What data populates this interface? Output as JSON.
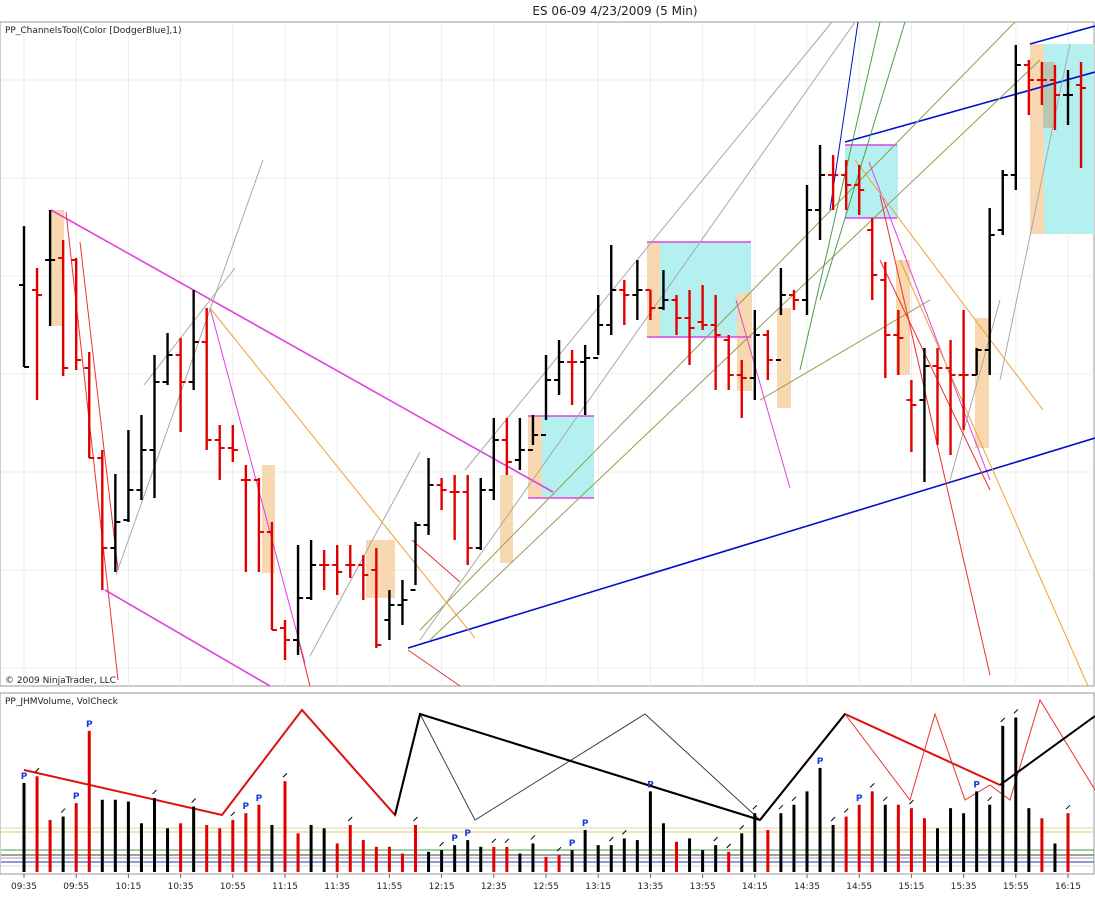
{
  "window": {
    "title": "ES 06-09  4/23/2009 (5 Min)"
  },
  "colors": {
    "up_bar": "#000000",
    "down_bar": "#e00000",
    "magenta": "#e040e0",
    "blue": "#0010c8",
    "gray": "#a8a8a8",
    "olive": "#9a9a50",
    "orange": "#f0a030",
    "green": "#4aa04a",
    "red_line": "#ee3030",
    "cyan_box": "#b4f0f0",
    "peach_box": "#f8d8b0",
    "p_marker": "#1a3ad8",
    "grid": "#ececec"
  },
  "price_panel": {
    "indicator_label": "PP_ChannelsTool(Color [DodgerBlue],1)",
    "copyright": "© 2009 NinjaTrader, LLC"
  },
  "volume_panel": {
    "indicator_label": "PP_JHMVolume, VolCheck",
    "p_marker_text": "P"
  },
  "chart_data": [
    {
      "type": "bar",
      "title": "ES 06-09  4/23/2009 (5 Min)",
      "series_name": "PP_ChannelsTool(Color [DodgerBlue],1)",
      "x_tick_labels": [
        "09:35",
        "09:55",
        "10:15",
        "10:35",
        "10:55",
        "11:15",
        "11:35",
        "11:55",
        "12:15",
        "12:35",
        "12:55",
        "13:15",
        "13:35",
        "13:55",
        "14:15",
        "14:35",
        "14:55",
        "15:15",
        "15:35",
        "15:55",
        "16:15"
      ],
      "y_axis_labels_visible": false,
      "grid": true,
      "ohlc_relative": [
        {
          "h": 226,
          "l": 367,
          "o": 285,
          "c": 367,
          "dir": "up"
        },
        {
          "h": 268,
          "l": 400,
          "o": 290,
          "c": 295,
          "dir": "down"
        },
        {
          "h": 210,
          "l": 326,
          "o": 260,
          "c": 260,
          "dir": "up"
        },
        {
          "h": 240,
          "l": 376,
          "o": 258,
          "c": 368,
          "dir": "down"
        },
        {
          "h": 258,
          "l": 370,
          "o": 260,
          "c": 360,
          "dir": "down"
        },
        {
          "h": 352,
          "l": 458,
          "o": 368,
          "c": 458,
          "dir": "down"
        },
        {
          "h": 450,
          "l": 590,
          "o": 458,
          "c": 548,
          "dir": "down"
        },
        {
          "h": 474,
          "l": 572,
          "o": 548,
          "c": 522,
          "dir": "up"
        },
        {
          "h": 430,
          "l": 522,
          "o": 520,
          "c": 490,
          "dir": "up"
        },
        {
          "h": 415,
          "l": 500,
          "o": 490,
          "c": 450,
          "dir": "up"
        },
        {
          "h": 355,
          "l": 498,
          "o": 450,
          "c": 382,
          "dir": "up"
        },
        {
          "h": 333,
          "l": 385,
          "o": 382,
          "c": 355,
          "dir": "up"
        },
        {
          "h": 338,
          "l": 432,
          "o": 355,
          "c": 382,
          "dir": "down"
        },
        {
          "h": 290,
          "l": 390,
          "o": 382,
          "c": 342,
          "dir": "up"
        },
        {
          "h": 308,
          "l": 450,
          "o": 342,
          "c": 440,
          "dir": "down"
        },
        {
          "h": 425,
          "l": 480,
          "o": 440,
          "c": 448,
          "dir": "down"
        },
        {
          "h": 425,
          "l": 462,
          "o": 448,
          "c": 450,
          "dir": "down"
        },
        {
          "h": 465,
          "l": 572,
          "o": 480,
          "c": 480,
          "dir": "down"
        },
        {
          "h": 478,
          "l": 572,
          "o": 480,
          "c": 532,
          "dir": "down"
        },
        {
          "h": 522,
          "l": 630,
          "o": 532,
          "c": 630,
          "dir": "down"
        },
        {
          "h": 620,
          "l": 660,
          "o": 628,
          "c": 640,
          "dir": "down"
        },
        {
          "h": 545,
          "l": 655,
          "o": 640,
          "c": 598,
          "dir": "up"
        },
        {
          "h": 540,
          "l": 600,
          "o": 598,
          "c": 565,
          "dir": "up"
        },
        {
          "h": 550,
          "l": 590,
          "o": 565,
          "c": 565,
          "dir": "down"
        },
        {
          "h": 545,
          "l": 595,
          "o": 565,
          "c": 572,
          "dir": "down"
        },
        {
          "h": 545,
          "l": 578,
          "o": 565,
          "c": 565,
          "dir": "down"
        },
        {
          "h": 555,
          "l": 600,
          "o": 565,
          "c": 575,
          "dir": "down"
        },
        {
          "h": 548,
          "l": 648,
          "o": 570,
          "c": 645,
          "dir": "down"
        },
        {
          "h": 590,
          "l": 640,
          "o": 620,
          "c": 605,
          "dir": "up"
        },
        {
          "h": 580,
          "l": 625,
          "o": 605,
          "c": 600,
          "dir": "up"
        },
        {
          "h": 522,
          "l": 585,
          "o": 590,
          "c": 525,
          "dir": "up"
        },
        {
          "h": 458,
          "l": 535,
          "o": 525,
          "c": 485,
          "dir": "up"
        },
        {
          "h": 478,
          "l": 510,
          "o": 485,
          "c": 490,
          "dir": "down"
        },
        {
          "h": 475,
          "l": 540,
          "o": 492,
          "c": 492,
          "dir": "down"
        },
        {
          "h": 475,
          "l": 565,
          "o": 492,
          "c": 548,
          "dir": "down"
        },
        {
          "h": 478,
          "l": 550,
          "o": 548,
          "c": 490,
          "dir": "up"
        },
        {
          "h": 418,
          "l": 500,
          "o": 490,
          "c": 440,
          "dir": "up"
        },
        {
          "h": 418,
          "l": 475,
          "o": 440,
          "c": 462,
          "dir": "down"
        },
        {
          "h": 418,
          "l": 470,
          "o": 460,
          "c": 450,
          "dir": "up"
        },
        {
          "h": 415,
          "l": 445,
          "o": 450,
          "c": 435,
          "dir": "up"
        },
        {
          "h": 355,
          "l": 420,
          "o": 435,
          "c": 380,
          "dir": "up"
        },
        {
          "h": 340,
          "l": 395,
          "o": 380,
          "c": 362,
          "dir": "up"
        },
        {
          "h": 350,
          "l": 405,
          "o": 362,
          "c": 362,
          "dir": "down"
        },
        {
          "h": 345,
          "l": 415,
          "o": 362,
          "c": 358,
          "dir": "up"
        },
        {
          "h": 295,
          "l": 355,
          "o": 358,
          "c": 325,
          "dir": "up"
        },
        {
          "h": 245,
          "l": 335,
          "o": 325,
          "c": 290,
          "dir": "up"
        },
        {
          "h": 280,
          "l": 325,
          "o": 290,
          "c": 295,
          "dir": "down"
        },
        {
          "h": 260,
          "l": 320,
          "o": 295,
          "c": 290,
          "dir": "up"
        },
        {
          "h": 290,
          "l": 320,
          "o": 290,
          "c": 308,
          "dir": "down"
        },
        {
          "h": 270,
          "l": 310,
          "o": 308,
          "c": 300,
          "dir": "up"
        },
        {
          "h": 295,
          "l": 335,
          "o": 300,
          "c": 318,
          "dir": "down"
        },
        {
          "h": 290,
          "l": 365,
          "o": 318,
          "c": 328,
          "dir": "down"
        },
        {
          "h": 285,
          "l": 330,
          "o": 322,
          "c": 325,
          "dir": "down"
        },
        {
          "h": 295,
          "l": 390,
          "o": 325,
          "c": 335,
          "dir": "down"
        },
        {
          "h": 335,
          "l": 390,
          "o": 340,
          "c": 375,
          "dir": "down"
        },
        {
          "h": 360,
          "l": 418,
          "o": 375,
          "c": 378,
          "dir": "down"
        },
        {
          "h": 310,
          "l": 400,
          "o": 378,
          "c": 335,
          "dir": "up"
        },
        {
          "h": 330,
          "l": 380,
          "o": 335,
          "c": 360,
          "dir": "down"
        },
        {
          "h": 268,
          "l": 315,
          "o": 360,
          "c": 295,
          "dir": "up"
        },
        {
          "h": 290,
          "l": 310,
          "o": 295,
          "c": 300,
          "dir": "down"
        },
        {
          "h": 185,
          "l": 315,
          "o": 300,
          "c": 210,
          "dir": "up"
        },
        {
          "h": 145,
          "l": 240,
          "o": 210,
          "c": 175,
          "dir": "up"
        },
        {
          "h": 155,
          "l": 210,
          "o": 175,
          "c": 175,
          "dir": "down"
        },
        {
          "h": 160,
          "l": 210,
          "o": 175,
          "c": 185,
          "dir": "down"
        },
        {
          "h": 165,
          "l": 215,
          "o": 185,
          "c": 190,
          "dir": "down"
        },
        {
          "h": 218,
          "l": 300,
          "o": 230,
          "c": 275,
          "dir": "down"
        },
        {
          "h": 262,
          "l": 378,
          "o": 280,
          "c": 335,
          "dir": "down"
        },
        {
          "h": 310,
          "l": 375,
          "o": 335,
          "c": 338,
          "dir": "down"
        },
        {
          "h": 380,
          "l": 452,
          "o": 400,
          "c": 405,
          "dir": "down"
        },
        {
          "h": 348,
          "l": 482,
          "o": 400,
          "c": 366,
          "dir": "up"
        },
        {
          "h": 348,
          "l": 445,
          "o": 366,
          "c": 368,
          "dir": "down"
        },
        {
          "h": 340,
          "l": 455,
          "o": 368,
          "c": 375,
          "dir": "down"
        },
        {
          "h": 310,
          "l": 430,
          "o": 375,
          "c": 375,
          "dir": "down"
        },
        {
          "h": 348,
          "l": 375,
          "o": 375,
          "c": 350,
          "dir": "up"
        },
        {
          "h": 208,
          "l": 375,
          "o": 350,
          "c": 235,
          "dir": "up"
        },
        {
          "h": 170,
          "l": 235,
          "o": 230,
          "c": 175,
          "dir": "up"
        },
        {
          "h": 45,
          "l": 190,
          "o": 175,
          "c": 65,
          "dir": "up"
        },
        {
          "h": 60,
          "l": 115,
          "o": 65,
          "c": 80,
          "dir": "down"
        },
        {
          "h": 62,
          "l": 105,
          "o": 80,
          "c": 80,
          "dir": "down"
        },
        {
          "h": 65,
          "l": 130,
          "o": 80,
          "c": 95,
          "dir": "down"
        },
        {
          "h": 70,
          "l": 125,
          "o": 95,
          "c": 95,
          "dir": "up"
        },
        {
          "h": 62,
          "l": 168,
          "o": 85,
          "c": 88,
          "dir": "down"
        }
      ]
    },
    {
      "type": "bar",
      "series_name": "PP_JHMVolume, VolCheck",
      "x_tick_labels": [
        "09:35",
        "09:55",
        "10:15",
        "10:35",
        "10:55",
        "11:15",
        "11:35",
        "11:55",
        "12:15",
        "12:35",
        "12:55",
        "13:15",
        "13:35",
        "13:55",
        "14:15",
        "14:35",
        "14:55",
        "15:15",
        "15:35",
        "15:55",
        "16:15"
      ],
      "y_axis_labels_visible": false,
      "grid": false,
      "volume_relative": [
        {
          "v": 0.53,
          "dir": "up",
          "mark": "P"
        },
        {
          "v": 0.57,
          "dir": "down",
          "mark": "tick"
        },
        {
          "v": 0.31,
          "dir": "down",
          "mark": ""
        },
        {
          "v": 0.33,
          "dir": "up",
          "mark": "tick"
        },
        {
          "v": 0.41,
          "dir": "down",
          "mark": "P"
        },
        {
          "v": 0.84,
          "dir": "down",
          "mark": "P"
        },
        {
          "v": 0.43,
          "dir": "up",
          "mark": ""
        },
        {
          "v": 0.43,
          "dir": "up",
          "mark": ""
        },
        {
          "v": 0.42,
          "dir": "up",
          "mark": ""
        },
        {
          "v": 0.29,
          "dir": "up",
          "mark": ""
        },
        {
          "v": 0.44,
          "dir": "up",
          "mark": "tick"
        },
        {
          "v": 0.26,
          "dir": "up",
          "mark": ""
        },
        {
          "v": 0.29,
          "dir": "down",
          "mark": ""
        },
        {
          "v": 0.39,
          "dir": "up",
          "mark": "tick"
        },
        {
          "v": 0.28,
          "dir": "down",
          "mark": ""
        },
        {
          "v": 0.26,
          "dir": "down",
          "mark": ""
        },
        {
          "v": 0.31,
          "dir": "down",
          "mark": "tick"
        },
        {
          "v": 0.35,
          "dir": "down",
          "mark": "P"
        },
        {
          "v": 0.4,
          "dir": "down",
          "mark": "P"
        },
        {
          "v": 0.28,
          "dir": "up",
          "mark": ""
        },
        {
          "v": 0.54,
          "dir": "down",
          "mark": "tick"
        },
        {
          "v": 0.23,
          "dir": "down",
          "mark": ""
        },
        {
          "v": 0.28,
          "dir": "up",
          "mark": ""
        },
        {
          "v": 0.26,
          "dir": "up",
          "mark": ""
        },
        {
          "v": 0.17,
          "dir": "down",
          "mark": ""
        },
        {
          "v": 0.28,
          "dir": "down",
          "mark": "tick"
        },
        {
          "v": 0.19,
          "dir": "down",
          "mark": ""
        },
        {
          "v": 0.15,
          "dir": "down",
          "mark": ""
        },
        {
          "v": 0.15,
          "dir": "down",
          "mark": ""
        },
        {
          "v": 0.11,
          "dir": "down",
          "mark": ""
        },
        {
          "v": 0.28,
          "dir": "down",
          "mark": "tick"
        },
        {
          "v": 0.12,
          "dir": "up",
          "mark": ""
        },
        {
          "v": 0.13,
          "dir": "up",
          "mark": "tick"
        },
        {
          "v": 0.16,
          "dir": "up",
          "mark": "P"
        },
        {
          "v": 0.19,
          "dir": "up",
          "mark": "P"
        },
        {
          "v": 0.15,
          "dir": "up",
          "mark": ""
        },
        {
          "v": 0.15,
          "dir": "down",
          "mark": "tick"
        },
        {
          "v": 0.15,
          "dir": "down",
          "mark": "tick"
        },
        {
          "v": 0.11,
          "dir": "up",
          "mark": ""
        },
        {
          "v": 0.17,
          "dir": "up",
          "mark": "tick"
        },
        {
          "v": 0.09,
          "dir": "down",
          "mark": ""
        },
        {
          "v": 0.1,
          "dir": "down",
          "mark": "tick"
        },
        {
          "v": 0.13,
          "dir": "up",
          "mark": "P"
        },
        {
          "v": 0.25,
          "dir": "up",
          "mark": "P"
        },
        {
          "v": 0.16,
          "dir": "up",
          "mark": ""
        },
        {
          "v": 0.16,
          "dir": "up",
          "mark": "tick"
        },
        {
          "v": 0.2,
          "dir": "up",
          "mark": "tick"
        },
        {
          "v": 0.19,
          "dir": "up",
          "mark": ""
        },
        {
          "v": 0.48,
          "dir": "up",
          "mark": "P"
        },
        {
          "v": 0.29,
          "dir": "up",
          "mark": ""
        },
        {
          "v": 0.18,
          "dir": "down",
          "mark": ""
        },
        {
          "v": 0.2,
          "dir": "up",
          "mark": ""
        },
        {
          "v": 0.13,
          "dir": "up",
          "mark": ""
        },
        {
          "v": 0.16,
          "dir": "up",
          "mark": "tick"
        },
        {
          "v": 0.12,
          "dir": "down",
          "mark": "tick"
        },
        {
          "v": 0.23,
          "dir": "up",
          "mark": "tick"
        },
        {
          "v": 0.35,
          "dir": "up",
          "mark": "tick"
        },
        {
          "v": 0.25,
          "dir": "down",
          "mark": ""
        },
        {
          "v": 0.35,
          "dir": "up",
          "mark": "tick"
        },
        {
          "v": 0.4,
          "dir": "up",
          "mark": "tick"
        },
        {
          "v": 0.48,
          "dir": "up",
          "mark": ""
        },
        {
          "v": 0.62,
          "dir": "up",
          "mark": "P"
        },
        {
          "v": 0.28,
          "dir": "up",
          "mark": "tick"
        },
        {
          "v": 0.33,
          "dir": "down",
          "mark": "tick"
        },
        {
          "v": 0.4,
          "dir": "down",
          "mark": "P"
        },
        {
          "v": 0.48,
          "dir": "down",
          "mark": "tick"
        },
        {
          "v": 0.4,
          "dir": "up",
          "mark": "tick"
        },
        {
          "v": 0.4,
          "dir": "down",
          "mark": ""
        },
        {
          "v": 0.38,
          "dir": "down",
          "mark": "tick"
        },
        {
          "v": 0.32,
          "dir": "down",
          "mark": ""
        },
        {
          "v": 0.26,
          "dir": "up",
          "mark": ""
        },
        {
          "v": 0.38,
          "dir": "up",
          "mark": ""
        },
        {
          "v": 0.35,
          "dir": "up",
          "mark": ""
        },
        {
          "v": 0.48,
          "dir": "up",
          "mark": "P"
        },
        {
          "v": 0.4,
          "dir": "up",
          "mark": "tick"
        },
        {
          "v": 0.87,
          "dir": "up",
          "mark": "tick"
        },
        {
          "v": 0.92,
          "dir": "up",
          "mark": "tick"
        },
        {
          "v": 0.38,
          "dir": "up",
          "mark": ""
        },
        {
          "v": 0.32,
          "dir": "down",
          "mark": ""
        },
        {
          "v": 0.17,
          "dir": "up",
          "mark": ""
        },
        {
          "v": 0.35,
          "dir": "down",
          "mark": "tick"
        }
      ]
    }
  ]
}
